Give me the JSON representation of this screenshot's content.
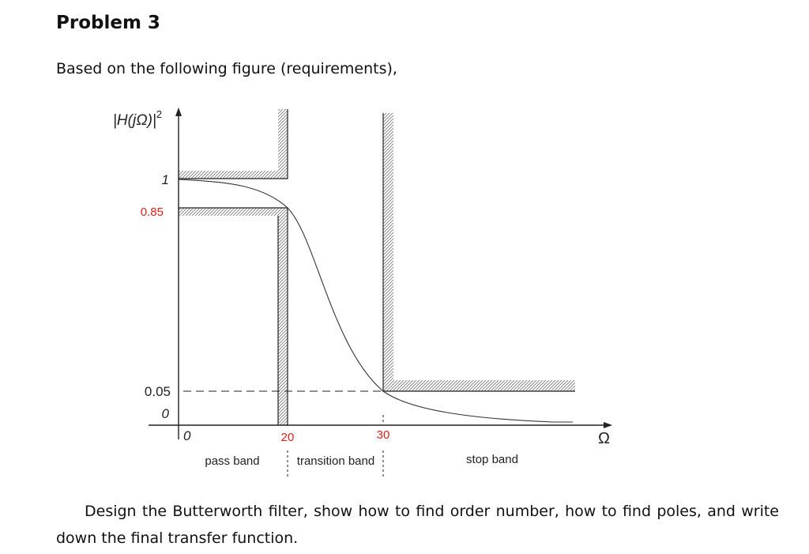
{
  "document": {
    "title": "Problem 3",
    "intro": "Based on the following figure (requirements),",
    "task": "Design the Butterworth filter, show how to find order number, how to find poles, and write down the final transfer function."
  },
  "figure": {
    "y_axis_label": "|H(jΩ)|",
    "y_axis_exponent": "2",
    "x_axis_label": "Ω",
    "y_ticks": {
      "one": "1",
      "pass_min": "0.85",
      "stop_max": "0.05",
      "zero": "0"
    },
    "x_ticks": {
      "zero": "0",
      "pass_edge": "20",
      "stop_edge": "30"
    },
    "bands": {
      "pass": "pass band",
      "transition": "transition band",
      "stop": "stop band"
    },
    "colors": {
      "highlight": "#e0201c",
      "hatch": "#777777",
      "curve": "#333333"
    }
  }
}
